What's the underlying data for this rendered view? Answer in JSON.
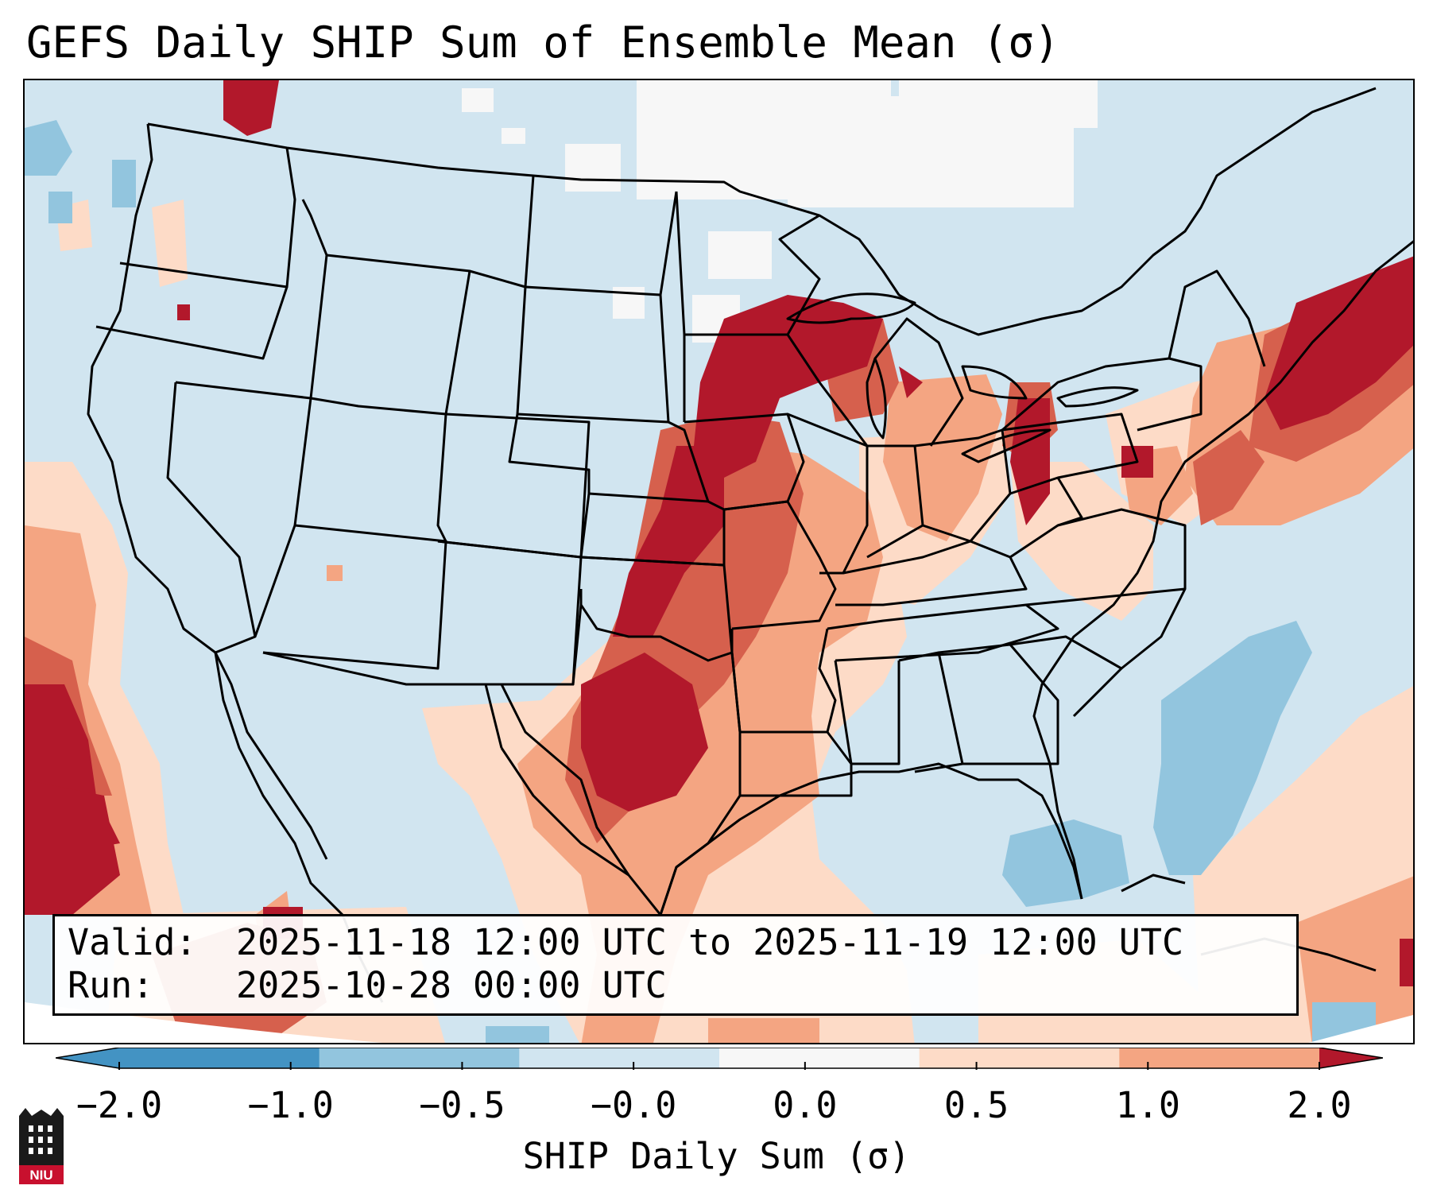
{
  "title": "GEFS Daily SHIP Sum of Ensemble Mean (σ)",
  "info": {
    "valid_label": "Valid:",
    "valid_value": "2025-11-18 12:00 UTC to 2025-11-19 12:00 UTC",
    "run_label": "Run:",
    "run_value": "2025-10-28 00:00 UTC"
  },
  "colorbar": {
    "label": "SHIP Daily Sum (σ)",
    "ticks": [
      "−2.0",
      "−1.0",
      "−0.5",
      "−0.0",
      "0.0",
      "0.5",
      "1.0",
      "2.0"
    ],
    "colors": [
      "#4393c3",
      "#92c5de",
      "#d1e5f0",
      "#f7f7f7",
      "#fddbc7",
      "#f4a582",
      "#d6604d",
      "#b2182b"
    ]
  },
  "logo": {
    "text": "NIU"
  },
  "map": {
    "projection": "Lambert Conformal, CONUS",
    "max_region": "Oklahoma / Texas / Iowa / Great Lakes / Mid-Atlantic coast",
    "min_region": "Southeast US offshore / Gulf of Mexico"
  }
}
